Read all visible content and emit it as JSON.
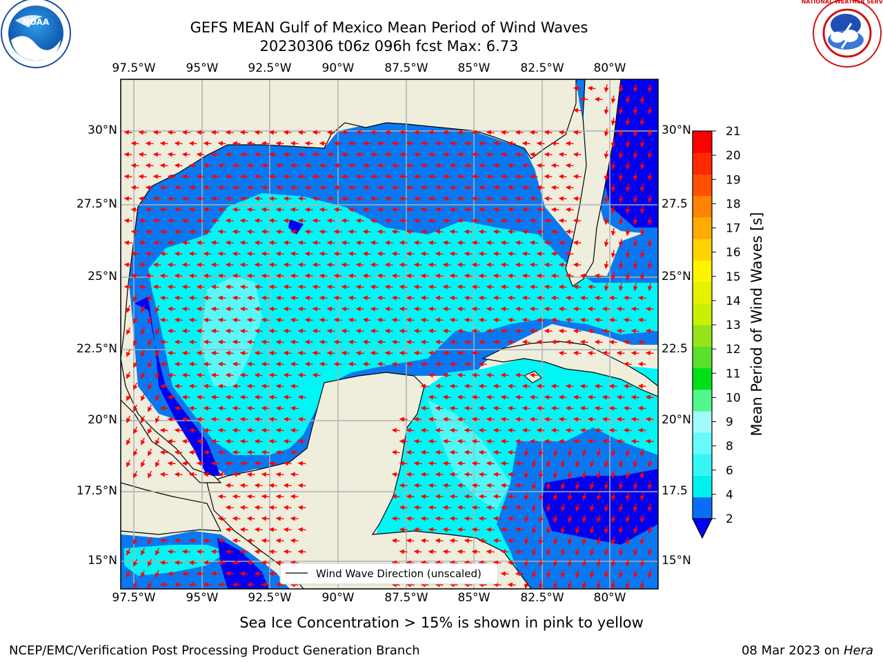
{
  "header": {
    "title_line1": "GEFS MEAN Gulf of Mexico Mean Period of Wind Waves",
    "title_line2": "20230306 t06z 096h fcst   Max: 6.73"
  },
  "logos": {
    "left": {
      "name": "NOAA",
      "ring_text": "NATIONAL OCEANIC AND ATMOSPHERIC ADMINISTRATION · U.S. DEPARTMENT OF COMMERCE",
      "center_text": "NOAA"
    },
    "right": {
      "name": "National Weather Service",
      "ring_text": "NATIONAL WEATHER SERVICE"
    }
  },
  "axes": {
    "lon_ticks": [
      "97.5°W",
      "95°W",
      "92.5°W",
      "90°W",
      "87.5°W",
      "85°W",
      "82.5°W",
      "80°W"
    ],
    "lat_ticks_left": [
      "30°N",
      "27.5°N",
      "25°N",
      "22.5°N",
      "20°N",
      "17.5°N",
      "15°N"
    ],
    "lat_ticks_right": [
      "30°N",
      "27.5",
      "25°N",
      "22.5",
      "20°N",
      "17.5",
      "15°N"
    ]
  },
  "legend": {
    "label": "Wind Wave Direction (unscaled)"
  },
  "colorbar": {
    "label": "Mean Period of Wind Waves [s]",
    "ticks": [
      "2",
      "4",
      "6",
      "8",
      "9",
      "10",
      "11",
      "12",
      "13",
      "14",
      "15",
      "16",
      "17",
      "18",
      "19",
      "20",
      "21"
    ],
    "colors": [
      "#0a6ef5",
      "#00f0f0",
      "#38f5f5",
      "#66fafa",
      "#a0fafa",
      "#50f78a",
      "#00e016",
      "#5ce02e",
      "#96e21b",
      "#c8f000",
      "#e6f000",
      "#fff500",
      "#ffd200",
      "#ffaa00",
      "#ff8200",
      "#ff5000",
      "#ff2800",
      "#ff0000"
    ],
    "under_color": "#0000ff"
  },
  "colors": {
    "land": "#efeddc",
    "ocean_deep": "#0000f0",
    "ocean_blue": "#0a78f0",
    "ocean_cyan": "#00f5f5",
    "ocean_light": "#70f8f8",
    "arrow": "#ff0000",
    "grid": "#b0b0b0"
  },
  "footer": {
    "note": "Sea Ice Concentration > 15% is shown in pink to yellow",
    "left": "NCEP/EMC/Verification Post Processing Product Generation Branch",
    "right_date": "08 Mar 2023 on ",
    "right_host": "Hera"
  }
}
